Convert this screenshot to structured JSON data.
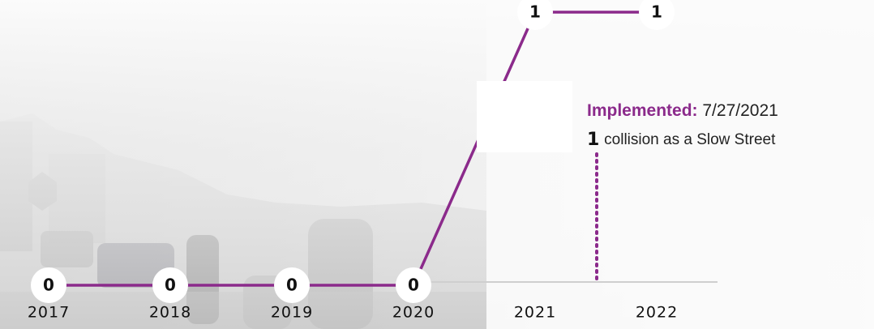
{
  "chart_data": {
    "type": "line",
    "categories": [
      "2017",
      "2018",
      "2019",
      "2020",
      "2021",
      "2022"
    ],
    "series": [
      {
        "color": "#8b2a8b",
        "values": [
          0,
          0,
          0,
          0,
          1,
          1
        ]
      }
    ],
    "ylim": [
      0,
      1
    ],
    "annotation": {
      "label": "Implemented:",
      "date": "7/27/2021",
      "count": 1,
      "text": "collision as a Slow Street"
    }
  }
}
